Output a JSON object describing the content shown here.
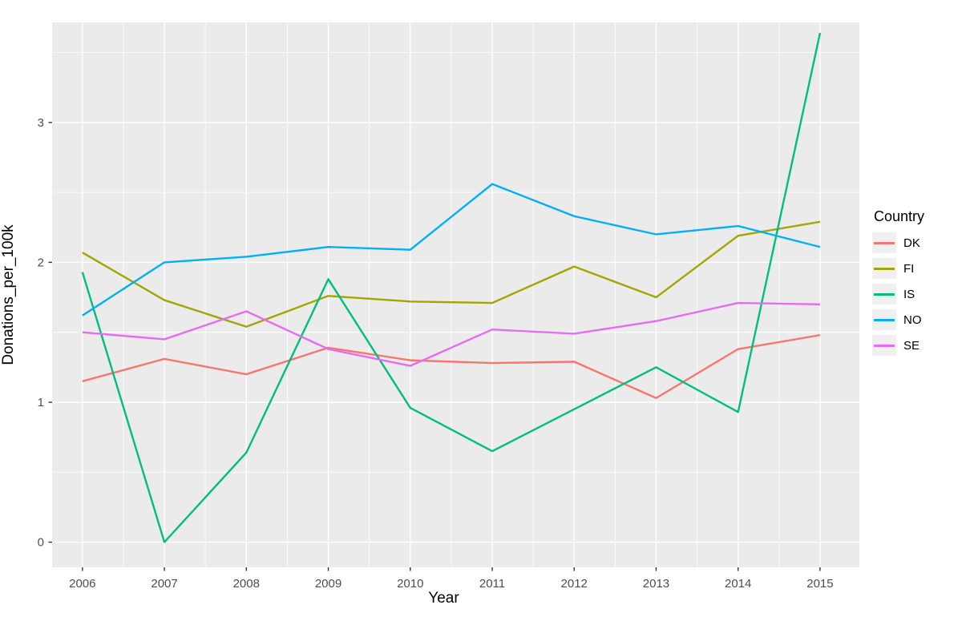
{
  "chart_data": {
    "type": "line",
    "title": "",
    "xlabel": "Year",
    "ylabel": "Donations_per_100k",
    "legend_title": "Country",
    "legend_position": "right",
    "x": [
      2006,
      2007,
      2008,
      2009,
      2010,
      2011,
      2012,
      2013,
      2014,
      2015
    ],
    "series": [
      {
        "name": "DK",
        "color": "#F8766D",
        "values": [
          1.15,
          1.31,
          1.2,
          1.39,
          1.3,
          1.28,
          1.29,
          1.03,
          1.38,
          1.48
        ]
      },
      {
        "name": "FI",
        "color": "#A3A500",
        "values": [
          2.07,
          1.73,
          1.54,
          1.76,
          1.72,
          1.71,
          1.97,
          1.75,
          2.19,
          2.29
        ]
      },
      {
        "name": "IS",
        "color": "#00BF7D",
        "values": [
          1.93,
          0.0,
          0.64,
          1.88,
          0.96,
          0.65,
          0.95,
          1.25,
          0.93,
          3.64
        ]
      },
      {
        "name": "NO",
        "color": "#00B0F6",
        "values": [
          1.62,
          2.0,
          2.04,
          2.11,
          2.09,
          2.56,
          2.33,
          2.2,
          2.26,
          2.11
        ]
      },
      {
        "name": "SE",
        "color": "#E76BF3",
        "values": [
          1.5,
          1.45,
          1.65,
          1.38,
          1.26,
          1.52,
          1.49,
          1.58,
          1.71,
          1.7
        ]
      }
    ],
    "x_ticks": [
      2006,
      2007,
      2008,
      2009,
      2010,
      2011,
      2012,
      2013,
      2014,
      2015
    ],
    "x_tick_labels": [
      "2006",
      "2007",
      "2008",
      "2009",
      "2010",
      "2011",
      "2012",
      "2013",
      "2014",
      "2015"
    ],
    "y_ticks": [
      0,
      1,
      2,
      3
    ],
    "y_tick_labels": [
      "0",
      "1",
      "2",
      "3"
    ],
    "xlim": [
      2005.63,
      2015.48
    ],
    "ylim": [
      -0.18,
      3.715
    ],
    "grid": "major+minor",
    "panel_bg": "#EBEBEB",
    "grid_color": "#FFFFFF",
    "tick_color": "#333333",
    "tick_label_color": "#4d4d4d"
  }
}
